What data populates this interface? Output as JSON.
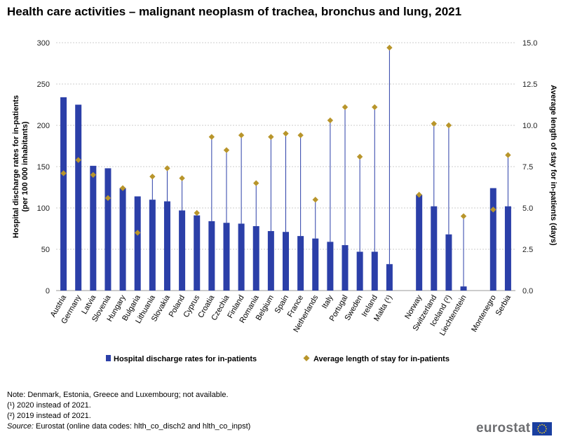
{
  "title": "Health care activities – malignant neoplasm of trachea, bronchus and lung, 2021",
  "colors": {
    "bar": "#2b3fa8",
    "marker": "#b8952b",
    "grid": "#cccccc"
  },
  "chart_data": {
    "type": "bar",
    "categories": [
      "Austria",
      "Germany",
      "Latvia",
      "Slovenia",
      "Hungary",
      "Bulgaria",
      "Lithuania",
      "Slovakia",
      "Poland",
      "Cyprus",
      "Croatia",
      "Czechia",
      "Finland",
      "Romania",
      "Belgium",
      "Spain",
      "France",
      "Netherlands",
      "Italy",
      "Portugal",
      "Sweden",
      "Ireland",
      "Malta (¹)",
      "",
      "Norway",
      "Switzerland",
      "Iceland (²)",
      "Liechtenstein",
      "",
      "Montenegro",
      "Serbia"
    ],
    "series": [
      {
        "name": "Hospital discharge rates for in-patients",
        "type": "bar",
        "axis": "left",
        "values": [
          234,
          225,
          151,
          148,
          124,
          114,
          110,
          108,
          97,
          91,
          84,
          82,
          81,
          78,
          72,
          71,
          66,
          63,
          59,
          55,
          47,
          47,
          32,
          null,
          116,
          102,
          68,
          5,
          null,
          124,
          102
        ]
      },
      {
        "name": "Average length of stay for in-patients",
        "type": "marker",
        "axis": "right",
        "values": [
          7.1,
          7.9,
          7.0,
          5.6,
          6.2,
          3.5,
          6.9,
          7.4,
          6.8,
          4.7,
          9.3,
          8.5,
          9.4,
          6.5,
          9.3,
          9.5,
          9.4,
          5.5,
          10.3,
          11.1,
          8.1,
          11.1,
          14.7,
          null,
          5.8,
          10.1,
          10.0,
          4.5,
          null,
          4.9,
          8.2
        ]
      }
    ],
    "yleft": {
      "label": "Hospital discharge rates for in-patients (per 100 000 inhabitants)",
      "ylim": [
        0,
        300
      ],
      "ticks": [
        "0",
        "50",
        "100",
        "150",
        "200",
        "250",
        "300"
      ]
    },
    "yright": {
      "label": "Average length of stay for in-patients (days)",
      "ylim": [
        0,
        15
      ],
      "ticks": [
        "0.0",
        "2.5",
        "5.0",
        "7.5",
        "10.0",
        "12.5",
        "15.0"
      ]
    },
    "grid": true,
    "legend": "bottom"
  },
  "notes": [
    "Note: Denmark, Estonia, Greece and Luxembourg; not available.",
    "(¹) 2020 instead of 2021.",
    "(²) 2019 instead of 2021."
  ],
  "source": {
    "label": "Source:",
    "text": " Eurostat (online data codes: hlth_co_disch2 and hlth_co_inpst)"
  },
  "logo": {
    "text": "eurostat"
  }
}
